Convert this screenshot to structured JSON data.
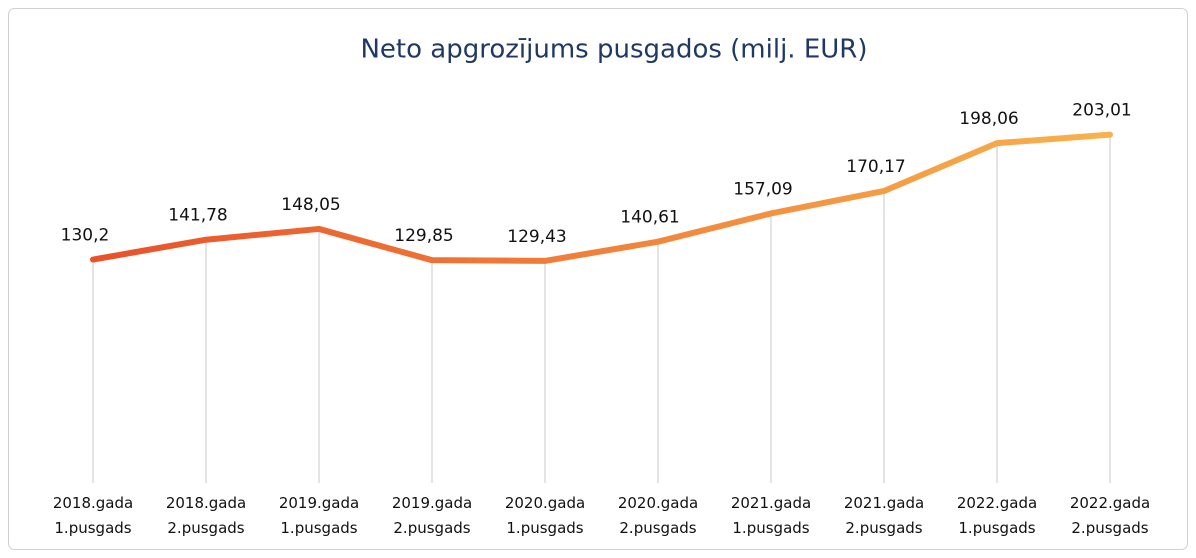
{
  "chart_data": {
    "type": "line",
    "title": "Neto apgrozījums pusgados (milj. EUR)",
    "categories": [
      "2018.gada\n1.pusgads",
      "2018.gada\n2.pusgads",
      "2019.gada\n1.pusgads",
      "2019.gada\n2.pusgads",
      "2020.gada\n1.pusgads",
      "2020.gada\n2.pusgads",
      "2021.gada\n1.pusgads",
      "2021.gada\n2.pusgads",
      "2022.gada\n1.pusgads",
      "2022.gada\n2.pusgads"
    ],
    "values": [
      130.2,
      141.78,
      148.05,
      129.85,
      129.43,
      140.61,
      157.09,
      170.17,
      198.06,
      203.01
    ],
    "value_labels": [
      "130,2",
      "141,78",
      "148,05",
      "129,85",
      "129,43",
      "140,61",
      "157,09",
      "170,17",
      "198,06",
      "203,01"
    ],
    "ylim": [
      0,
      250
    ],
    "color_start": "#e9512a",
    "color_end": "#f8b24c",
    "drop_lines": true
  }
}
